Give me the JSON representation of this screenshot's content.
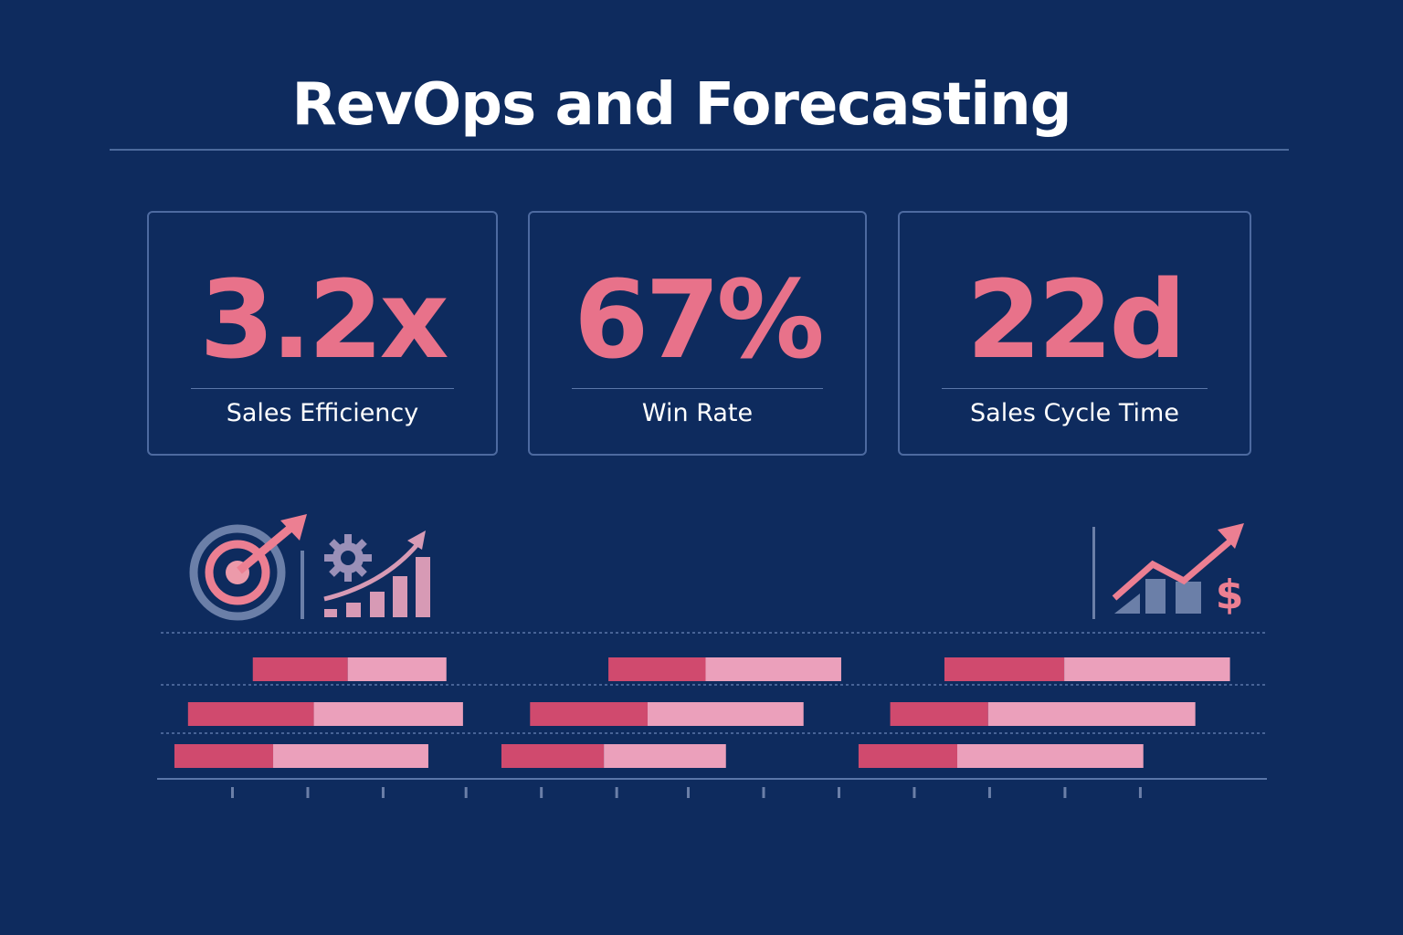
{
  "header": {
    "title": "RevOps and Forecasting"
  },
  "kpis": [
    {
      "value": "3.2x",
      "label": "Sales Efficiency"
    },
    {
      "value": "67%",
      "label": "Win Rate"
    },
    {
      "value": "22d",
      "label": "Sales Cycle Time"
    }
  ],
  "icons": [
    "target-arrow-icon",
    "gear-growth-chart-icon",
    "revenue-growth-dollar-icon"
  ],
  "colors": {
    "background": "#0e2b5e",
    "accent": "#e8728a",
    "bar_dark": "#d04a6e",
    "bar_light": "#eba0bb"
  },
  "chart_data": {
    "type": "bar",
    "orientation": "horizontal-stacked-floating",
    "title": "",
    "xlabel": "",
    "ylabel": "",
    "xlim": [
      0,
      14.73
    ],
    "ticks": [
      1,
      2,
      3,
      4.1,
      5.1,
      6.1,
      7.05,
      8.05,
      9.05,
      10.05,
      11.05,
      12.05,
      13.05
    ],
    "grid": true,
    "rows": [
      [
        {
          "start": 1.27,
          "mid": 2.53,
          "end": 3.84
        },
        {
          "start": 5.99,
          "mid": 7.28,
          "end": 9.08
        },
        {
          "start": 10.45,
          "mid": 12.04,
          "end": 14.24
        }
      ],
      [
        {
          "start": 0.41,
          "mid": 2.08,
          "end": 4.06
        },
        {
          "start": 4.95,
          "mid": 6.51,
          "end": 8.58
        },
        {
          "start": 9.73,
          "mid": 11.03,
          "end": 13.78
        }
      ],
      [
        {
          "start": 0.23,
          "mid": 1.54,
          "end": 3.6
        },
        {
          "start": 4.57,
          "mid": 5.93,
          "end": 7.55
        },
        {
          "start": 9.31,
          "mid": 10.62,
          "end": 13.09
        }
      ]
    ]
  }
}
